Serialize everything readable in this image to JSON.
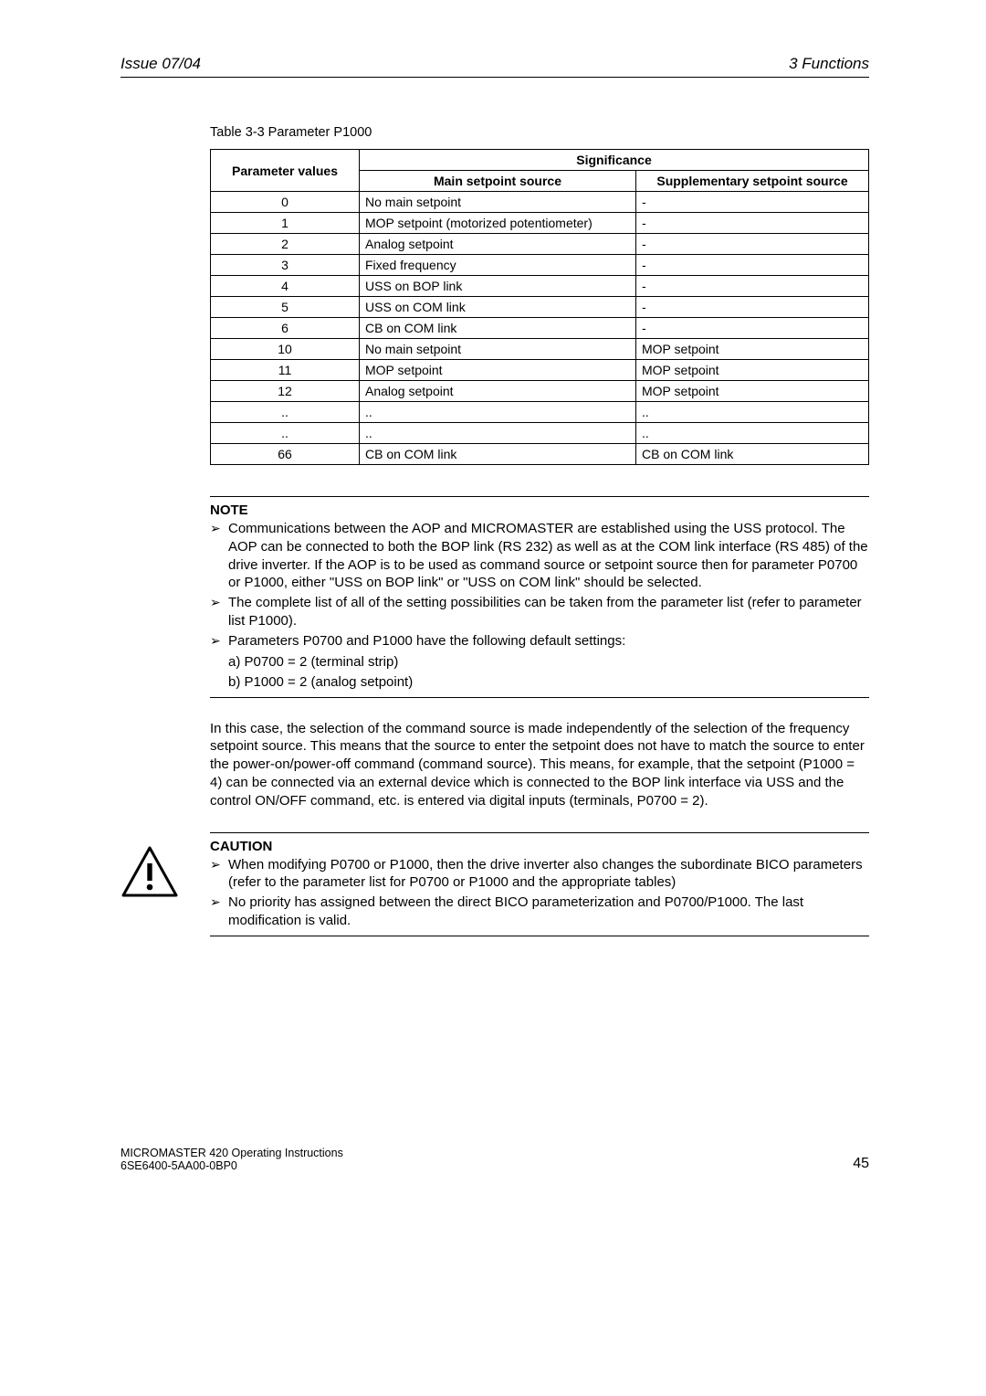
{
  "header": {
    "left": "Issue 07/04",
    "right": "3  Functions"
  },
  "table": {
    "caption": "Table 3-3      Parameter P1000",
    "head": {
      "pv": "Parameter values",
      "sig": "Significance",
      "main": "Main setpoint source",
      "supp": "Supplementary setpoint source"
    },
    "rows": [
      {
        "pv": "0",
        "main": "No main setpoint",
        "supp": "-"
      },
      {
        "pv": "1",
        "main": "MOP setpoint (motorized potentiometer)",
        "supp": "-"
      },
      {
        "pv": "2",
        "main": "Analog setpoint",
        "supp": "-"
      },
      {
        "pv": "3",
        "main": "Fixed frequency",
        "supp": "-"
      },
      {
        "pv": "4",
        "main": "USS on BOP link",
        "supp": "-"
      },
      {
        "pv": "5",
        "main": "USS on COM link",
        "supp": "-"
      },
      {
        "pv": "6",
        "main": "CB on COM link",
        "supp": "-"
      },
      {
        "pv": "10",
        "main": "No main setpoint",
        "supp": "MOP setpoint"
      },
      {
        "pv": "11",
        "main": "MOP setpoint",
        "supp": "MOP setpoint"
      },
      {
        "pv": "12",
        "main": "Analog setpoint",
        "supp": "MOP setpoint"
      },
      {
        "pv": "..",
        "main": "..",
        "supp": ".."
      },
      {
        "pv": "..",
        "main": "..",
        "supp": ".."
      },
      {
        "pv": "66",
        "main": "CB on COM link",
        "supp": "CB on COM link"
      }
    ]
  },
  "note": {
    "title": "NOTE",
    "items": [
      "Communications between the AOP and MICROMASTER are established using the USS protocol. The AOP can be connected to both the BOP link (RS 232) as well as at the COM link interface (RS 485) of the drive inverter. If the AOP is to be used as command source or setpoint source then for parameter P0700 or P1000, either \"USS on BOP link\" or \"USS on COM link\" should be selected.",
      "The complete list of all of the setting possibilities can be taken from the parameter list (refer to parameter list P1000).",
      "Parameters P0700 and P1000 have the following default settings:"
    ],
    "sub_a": "a) P0700 = 2    (terminal strip)",
    "sub_b": "b) P1000 = 2    (analog setpoint)"
  },
  "paragraph": "In this case, the selection of the command source is made independently of the selection of the frequency setpoint source. This means that the source to enter the setpoint does not have to match the source to enter the power-on/power-off command (command source). This means, for example, that the setpoint (P1000 = 4) can be connected via an external device which is connected to the BOP link interface via USS and the control ON/OFF command, etc. is entered via digital inputs (terminals, P0700 = 2).",
  "caution": {
    "title": "CAUTION",
    "items": [
      "When modifying P0700 or P1000, then the drive inverter also changes the subordinate BICO parameters (refer to the parameter list for P0700 or P1000 and the appropriate tables)",
      "No priority has assigned between the direct BICO parameterization and P0700/P1000. The last modification is valid."
    ]
  },
  "footer": {
    "line1": "MICROMASTER 420    Operating Instructions",
    "line2": "6SE6400-5AA00-0BP0",
    "page": "45"
  }
}
